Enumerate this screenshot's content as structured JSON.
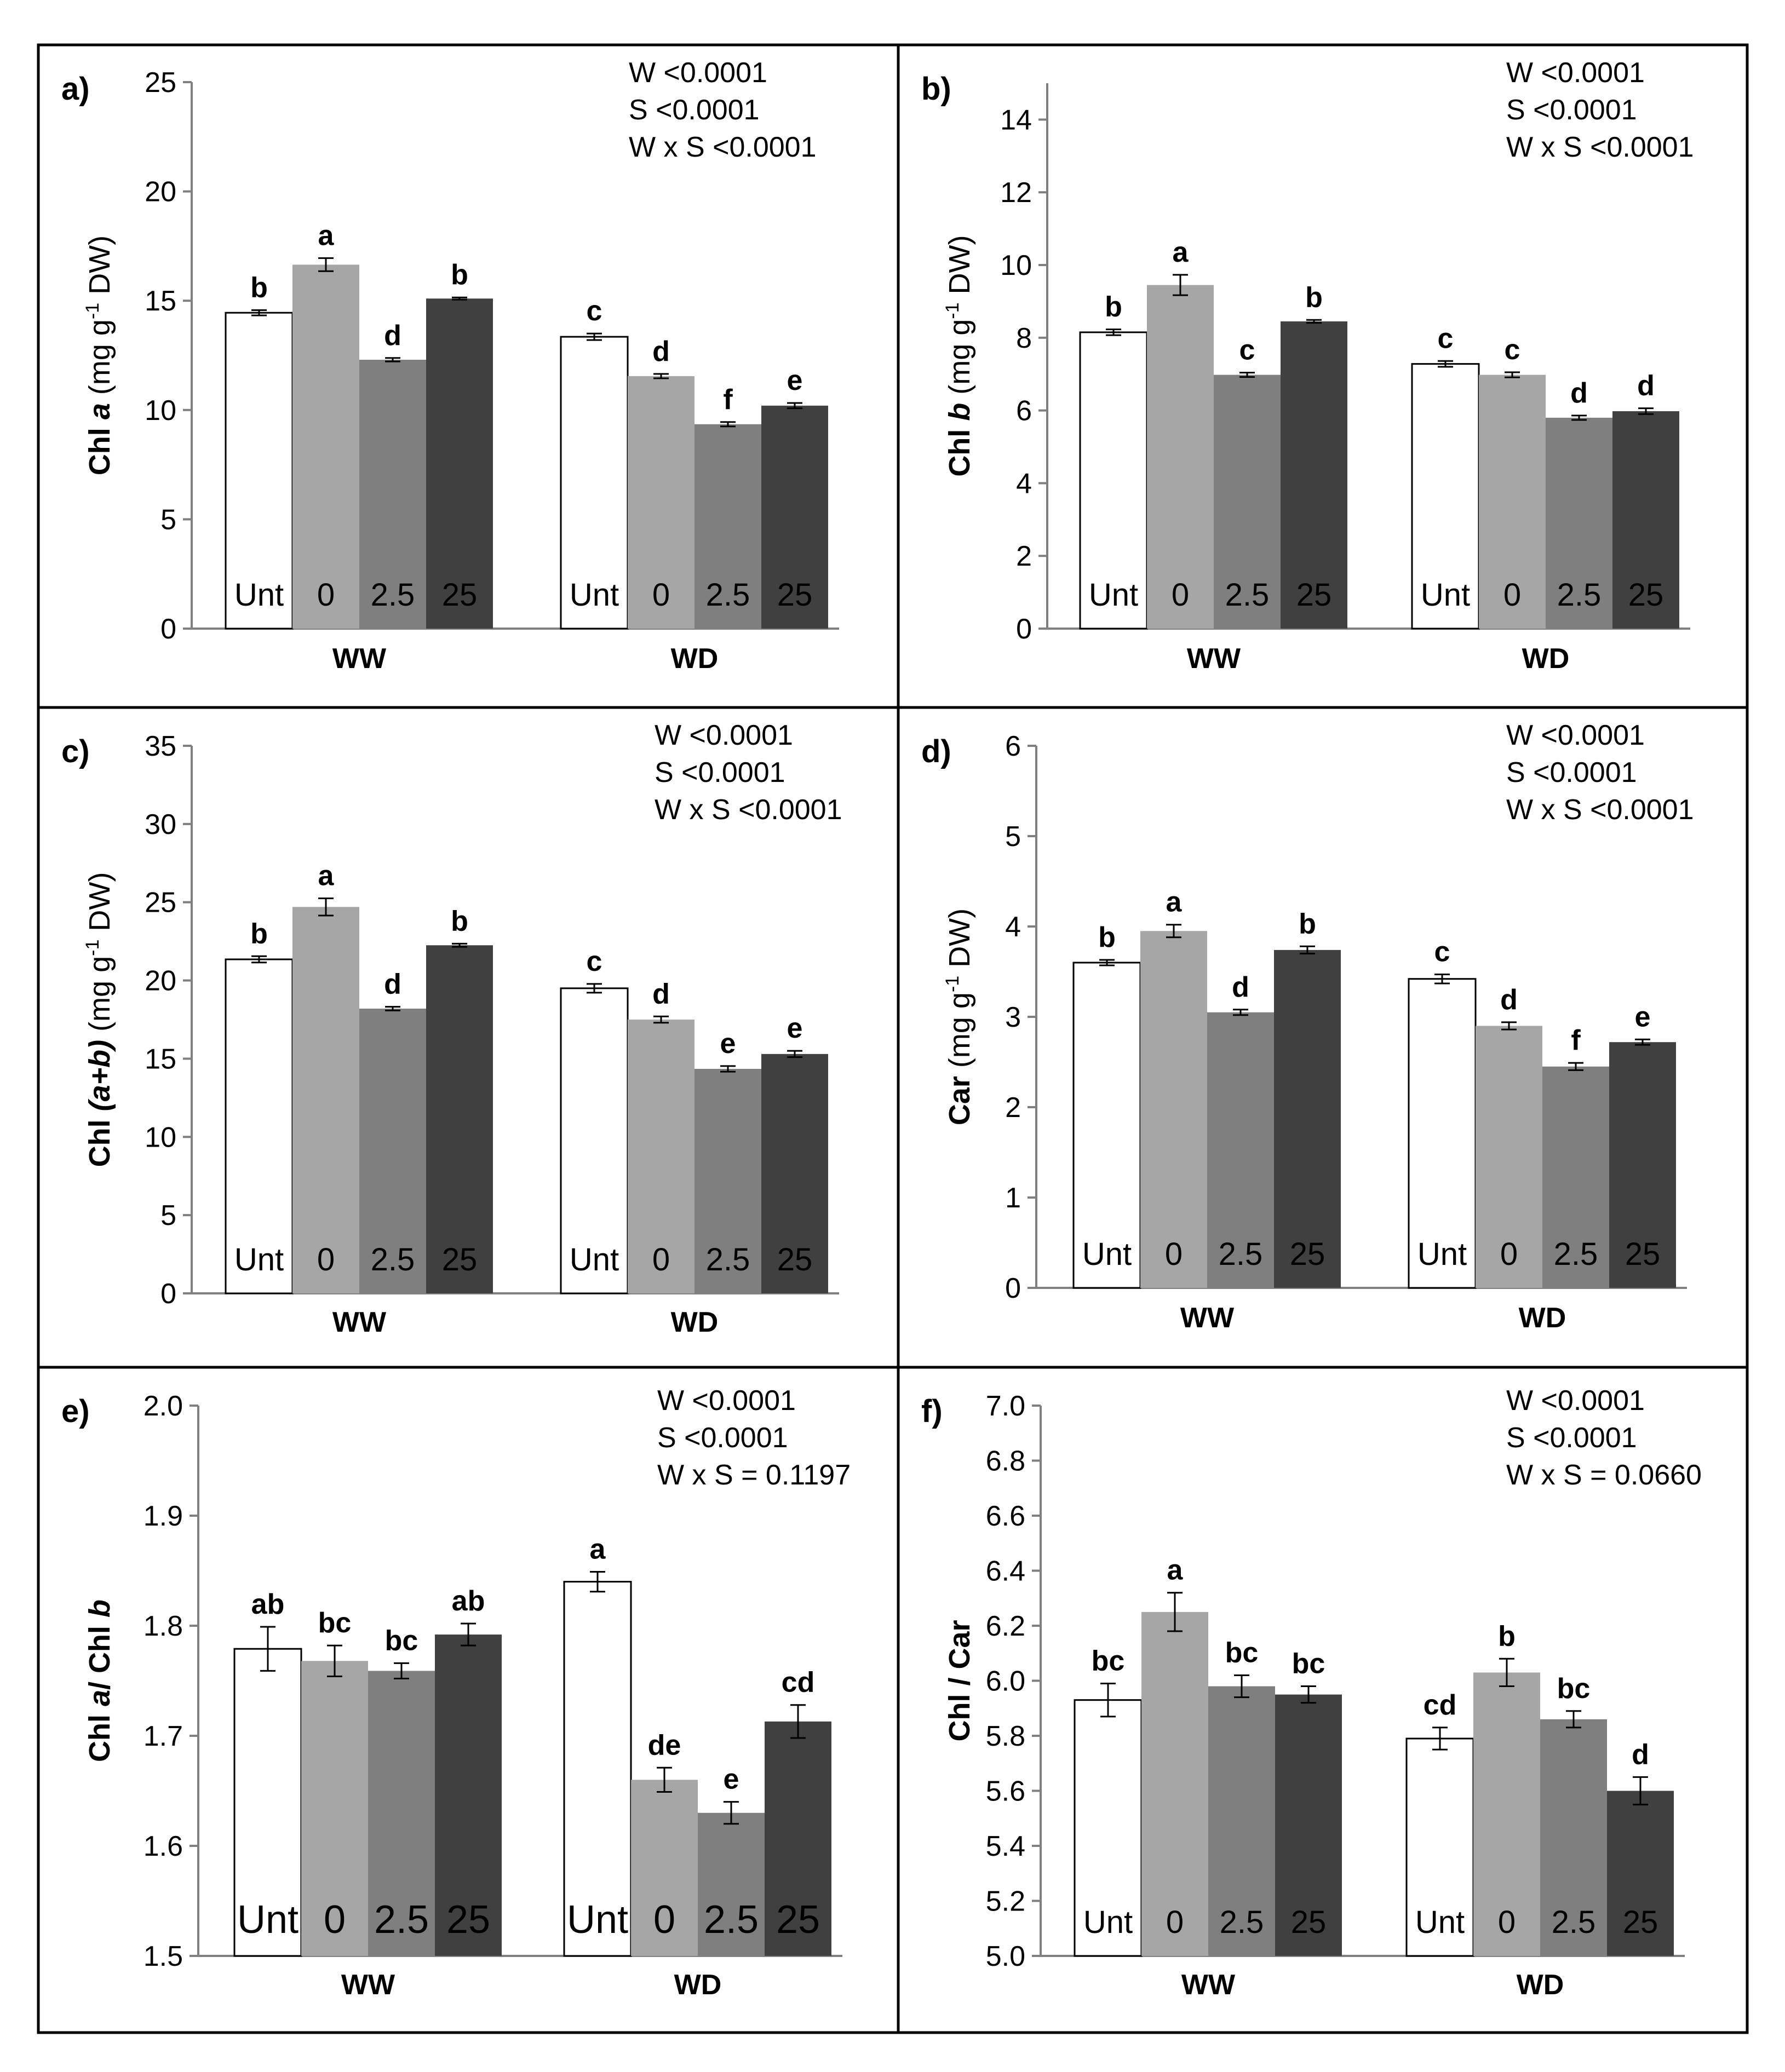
{
  "colors": {
    "Unt": "#ffffff",
    "0": "#a6a6a6",
    "2.5": "#7f7f7f",
    "25": "#404040",
    "axis": "#808080",
    "frame": "#000000"
  },
  "chart_data": [
    {
      "type": "bar",
      "panel": "a)",
      "ylabel": "Chl a (mg g-1 DW)",
      "ylabel_parts": [
        "Chl ",
        "a",
        " (mg g",
        "-1",
        " DW)"
      ],
      "ylim": [
        0,
        25
      ],
      "yticks": [
        "0",
        "5",
        "10",
        "15",
        "20",
        "25"
      ],
      "ytick_values": [
        0,
        5,
        10,
        15,
        20,
        25
      ],
      "categories": [
        "WW",
        "WD"
      ],
      "series_names": [
        "Unt",
        "0",
        "2.5",
        "25"
      ],
      "stats": [
        "W <0.0001",
        "S <0.0001",
        "W x S <0.0001"
      ],
      "groups": [
        {
          "name": "WW",
          "bars": [
            {
              "series": "Unt",
              "value": 14.45,
              "err": 0.12,
              "letter": "b"
            },
            {
              "series": "0",
              "value": 16.65,
              "err": 0.3,
              "letter": "a"
            },
            {
              "series": "2.5",
              "value": 12.3,
              "err": 0.08,
              "letter": "d"
            },
            {
              "series": "25",
              "value": 15.1,
              "err": 0.05,
              "letter": "b"
            }
          ]
        },
        {
          "name": "WD",
          "bars": [
            {
              "series": "Unt",
              "value": 13.35,
              "err": 0.15,
              "letter": "c"
            },
            {
              "series": "0",
              "value": 11.55,
              "err": 0.1,
              "letter": "d"
            },
            {
              "series": "2.5",
              "value": 9.35,
              "err": 0.1,
              "letter": "f"
            },
            {
              "series": "25",
              "value": 10.2,
              "err": 0.12,
              "letter": "e"
            }
          ]
        }
      ]
    },
    {
      "type": "bar",
      "panel": "b)",
      "ylabel": "Chl b (mg g-1 DW)",
      "ylabel_parts": [
        "Chl ",
        "b",
        " (mg g",
        "-1",
        " DW)"
      ],
      "ylim": [
        0,
        15
      ],
      "yticks": [
        "0",
        "2",
        "4",
        "6",
        "8",
        "10",
        "12",
        "14"
      ],
      "ytick_values": [
        0,
        2,
        4,
        6,
        8,
        10,
        12,
        14
      ],
      "categories": [
        "WW",
        "WD"
      ],
      "series_names": [
        "Unt",
        "0",
        "2.5",
        "25"
      ],
      "stats": [
        "W <0.0001",
        "S <0.0001",
        "W x S <0.0001"
      ],
      "groups": [
        {
          "name": "WW",
          "bars": [
            {
              "series": "Unt",
              "value": 8.15,
              "err": 0.08,
              "letter": "b"
            },
            {
              "series": "0",
              "value": 9.45,
              "err": 0.28,
              "letter": "a"
            },
            {
              "series": "2.5",
              "value": 6.98,
              "err": 0.06,
              "letter": "c"
            },
            {
              "series": "25",
              "value": 8.45,
              "err": 0.04,
              "letter": "b"
            }
          ]
        },
        {
          "name": "WD",
          "bars": [
            {
              "series": "Unt",
              "value": 7.28,
              "err": 0.08,
              "letter": "c"
            },
            {
              "series": "0",
              "value": 6.98,
              "err": 0.07,
              "letter": "c"
            },
            {
              "series": "2.5",
              "value": 5.8,
              "err": 0.06,
              "letter": "d"
            },
            {
              "series": "25",
              "value": 5.98,
              "err": 0.08,
              "letter": "d"
            }
          ]
        }
      ]
    },
    {
      "type": "bar",
      "panel": "c)",
      "ylabel": "Chl (a+b) (mg g-1 DW)",
      "ylabel_parts": [
        "Chl ",
        "(a+b)",
        " (mg g",
        "-1",
        " DW)"
      ],
      "ylim": [
        0,
        35
      ],
      "yticks": [
        "0",
        "5",
        "10",
        "15",
        "20",
        "25",
        "30",
        "35"
      ],
      "ytick_values": [
        0,
        5,
        10,
        15,
        20,
        25,
        30,
        35
      ],
      "categories": [
        "WW",
        "WD"
      ],
      "series_names": [
        "Unt",
        "0",
        "2.5",
        "25"
      ],
      "stats": [
        "W <0.0001",
        "S <0.0001",
        "W x S <0.0001"
      ],
      "groups": [
        {
          "name": "WW",
          "bars": [
            {
              "series": "Unt",
              "value": 21.35,
              "err": 0.2,
              "letter": "b"
            },
            {
              "series": "0",
              "value": 24.7,
              "err": 0.55,
              "letter": "a"
            },
            {
              "series": "2.5",
              "value": 18.2,
              "err": 0.12,
              "letter": "d"
            },
            {
              "series": "25",
              "value": 22.25,
              "err": 0.1,
              "letter": "b"
            }
          ]
        },
        {
          "name": "WD",
          "bars": [
            {
              "series": "Unt",
              "value": 19.5,
              "err": 0.28,
              "letter": "c"
            },
            {
              "series": "0",
              "value": 17.5,
              "err": 0.2,
              "letter": "d"
            },
            {
              "series": "2.5",
              "value": 14.35,
              "err": 0.18,
              "letter": "e"
            },
            {
              "series": "25",
              "value": 15.3,
              "err": 0.2,
              "letter": "e"
            }
          ]
        }
      ]
    },
    {
      "type": "bar",
      "panel": "d)",
      "ylabel": "Car (mg g-1 DW)",
      "ylabel_parts": [
        "Car ",
        "",
        " (mg g",
        "-1",
        " DW)"
      ],
      "ylim": [
        0,
        6
      ],
      "yticks": [
        "0",
        "1",
        "2",
        "3",
        "4",
        "5",
        "6"
      ],
      "ytick_values": [
        0,
        1,
        2,
        3,
        4,
        5,
        6
      ],
      "categories": [
        "WW",
        "WD"
      ],
      "series_names": [
        "Unt",
        "0",
        "2.5",
        "25"
      ],
      "stats": [
        "W <0.0001",
        "S <0.0001",
        "W x S <0.0001"
      ],
      "groups": [
        {
          "name": "WW",
          "bars": [
            {
              "series": "Unt",
              "value": 3.6,
              "err": 0.03,
              "letter": "b"
            },
            {
              "series": "0",
              "value": 3.95,
              "err": 0.07,
              "letter": "a"
            },
            {
              "series": "2.5",
              "value": 3.05,
              "err": 0.03,
              "letter": "d"
            },
            {
              "series": "25",
              "value": 3.74,
              "err": 0.04,
              "letter": "b"
            }
          ]
        },
        {
          "name": "WD",
          "bars": [
            {
              "series": "Unt",
              "value": 3.42,
              "err": 0.05,
              "letter": "c"
            },
            {
              "series": "0",
              "value": 2.9,
              "err": 0.04,
              "letter": "d"
            },
            {
              "series": "2.5",
              "value": 2.45,
              "err": 0.04,
              "letter": "f"
            },
            {
              "series": "25",
              "value": 2.72,
              "err": 0.03,
              "letter": "e"
            }
          ]
        }
      ]
    },
    {
      "type": "bar",
      "panel": "e)",
      "ylabel": "Chl a/ Chl b",
      "ylabel_parts": [
        "Chl ",
        "a",
        "/ Chl ",
        "b",
        ""
      ],
      "ylabel_mode": "ratio",
      "ylim": [
        1.5,
        2.0
      ],
      "yticks": [
        "1.5",
        "1.6",
        "1.7",
        "1.8",
        "1.9",
        "2.0"
      ],
      "ytick_values": [
        1.5,
        1.6,
        1.7,
        1.8,
        1.9,
        2.0
      ],
      "categories": [
        "WW",
        "WD"
      ],
      "series_names": [
        "Unt",
        "0",
        "2.5",
        "25"
      ],
      "big_series_labels": true,
      "stats": [
        "W <0.0001",
        "S <0.0001",
        "W x S = 0.1197"
      ],
      "groups": [
        {
          "name": "WW",
          "bars": [
            {
              "series": "Unt",
              "value": 1.779,
              "err": 0.02,
              "letter": "ab"
            },
            {
              "series": "0",
              "value": 1.768,
              "err": 0.014,
              "letter": "bc"
            },
            {
              "series": "2.5",
              "value": 1.759,
              "err": 0.007,
              "letter": "bc"
            },
            {
              "series": "25",
              "value": 1.792,
              "err": 0.01,
              "letter": "ab"
            }
          ]
        },
        {
          "name": "WD",
          "bars": [
            {
              "series": "Unt",
              "value": 1.84,
              "err": 0.009,
              "letter": "a"
            },
            {
              "series": "0",
              "value": 1.66,
              "err": 0.011,
              "letter": "de"
            },
            {
              "series": "2.5",
              "value": 1.63,
              "err": 0.01,
              "letter": "e"
            },
            {
              "series": "25",
              "value": 1.713,
              "err": 0.015,
              "letter": "cd"
            }
          ]
        }
      ]
    },
    {
      "type": "bar",
      "panel": "f)",
      "ylabel": "Chl / Car",
      "ylabel_parts": [
        "Chl / Car",
        "",
        "",
        "",
        ""
      ],
      "ylabel_mode": "plain",
      "ylim": [
        5.0,
        7.0
      ],
      "yticks": [
        "5.0",
        "5.2",
        "5.4",
        "5.6",
        "5.8",
        "6.0",
        "6.2",
        "6.4",
        "6.6",
        "6.8",
        "7.0"
      ],
      "ytick_values": [
        5.0,
        5.2,
        5.4,
        5.6,
        5.8,
        6.0,
        6.2,
        6.4,
        6.6,
        6.8,
        7.0
      ],
      "categories": [
        "WW",
        "WD"
      ],
      "series_names": [
        "Unt",
        "0",
        "2.5",
        "25"
      ],
      "stats": [
        "W <0.0001",
        "S <0.0001",
        "W x S = 0.0660"
      ],
      "groups": [
        {
          "name": "WW",
          "bars": [
            {
              "series": "Unt",
              "value": 5.93,
              "err": 0.06,
              "letter": "bc"
            },
            {
              "series": "0",
              "value": 6.25,
              "err": 0.07,
              "letter": "a"
            },
            {
              "series": "2.5",
              "value": 5.98,
              "err": 0.04,
              "letter": "bc"
            },
            {
              "series": "25",
              "value": 5.95,
              "err": 0.03,
              "letter": "bc"
            }
          ]
        },
        {
          "name": "WD",
          "bars": [
            {
              "series": "Unt",
              "value": 5.79,
              "err": 0.04,
              "letter": "cd"
            },
            {
              "series": "0",
              "value": 6.03,
              "err": 0.05,
              "letter": "b"
            },
            {
              "series": "2.5",
              "value": 5.86,
              "err": 0.03,
              "letter": "bc"
            },
            {
              "series": "25",
              "value": 5.6,
              "err": 0.05,
              "letter": "d"
            }
          ]
        }
      ]
    }
  ]
}
